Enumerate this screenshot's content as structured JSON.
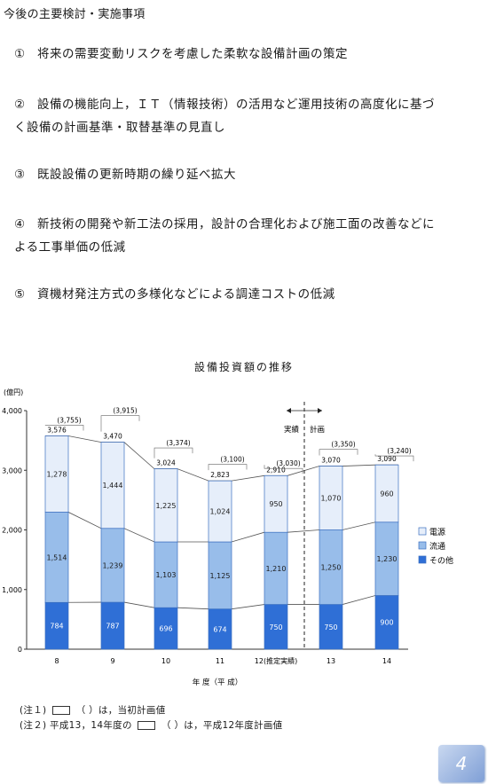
{
  "heading": "今後の主要検討・実施事項",
  "items": [
    {
      "num": "①",
      "line1": "将来の需要変動リスクを考慮した柔軟な設備計画の策定",
      "line2": ""
    },
    {
      "num": "②",
      "line1": "設備の機能向上，ＩＴ（情報技術）の活用など運用技術の高度化に基づ",
      "line2": "く設備の計画基準・取替基準の見直し"
    },
    {
      "num": "③",
      "line1": "既設設備の更新時期の繰り延べ拡大",
      "line2": ""
    },
    {
      "num": "④",
      "line1": "新技術の開発や新工法の採用，設計の合理化および施工面の改善などに",
      "line2": "よる工事単価の低減"
    },
    {
      "num": "⑤",
      "line1": "資機材発注方式の多様化などによる調達コストの低減",
      "line2": ""
    }
  ],
  "chart_data": {
    "type": "bar",
    "stacked": true,
    "title": "設備投資額の推移",
    "ylabel": "(億円)",
    "xlabel": "年 度（平 成）",
    "categories": [
      "8",
      "9",
      "10",
      "11",
      "12(推定実績)",
      "13",
      "14"
    ],
    "ylim": [
      0,
      4000
    ],
    "yticks": [
      "0",
      "1,000",
      "2,000",
      "3,000",
      "4,000"
    ],
    "series": [
      {
        "name": "その他",
        "color": "#2f6fd6",
        "values": [
          784,
          787,
          696,
          674,
          750,
          750,
          900
        ]
      },
      {
        "name": "流通",
        "color": "#98bdea",
        "values": [
          1514,
          1239,
          1103,
          1125,
          1210,
          1250,
          1230
        ]
      },
      {
        "name": "電源",
        "color": "#e6eefa",
        "values": [
          1278,
          1444,
          1225,
          1024,
          950,
          1070,
          960
        ]
      }
    ],
    "totals": [
      3576,
      3470,
      3024,
      2823,
      2910,
      3070,
      3090
    ],
    "totals_labels": [
      "3,576",
      "3,470",
      "3,024",
      "2,823",
      "2,910",
      "3,070",
      "3,090"
    ],
    "plan_values": [
      3755,
      3915,
      3374,
      3100,
      3030,
      3350,
      3240
    ],
    "plan_labels": [
      "(3,755)",
      "(3,915)",
      "(3,374)",
      "(3,100)",
      "(3,030)",
      "(3,350)",
      "(3,240)"
    ],
    "segment_labels": [
      [
        "784",
        "787",
        "696",
        "674",
        "750",
        "750",
        "900"
      ],
      [
        "1,514",
        "1,239",
        "1,103",
        "1,125",
        "1,210",
        "1,250",
        "1,230"
      ],
      [
        "1,278",
        "1,444",
        "1,225",
        "1,024",
        "950",
        "1,070",
        "960"
      ]
    ],
    "divider_left": "実績",
    "divider_right": "計画",
    "legend": [
      "電源",
      "流通",
      "その他"
    ],
    "legend_position": "right"
  },
  "notes": {
    "note1_prefix": "(注１)",
    "note1_text": "（ ）は，当初計画値",
    "note2_prefix": "(注２) 平成13，14年度の",
    "note2_text": "（ ）は，平成12年度計画値"
  },
  "page_number": "4"
}
